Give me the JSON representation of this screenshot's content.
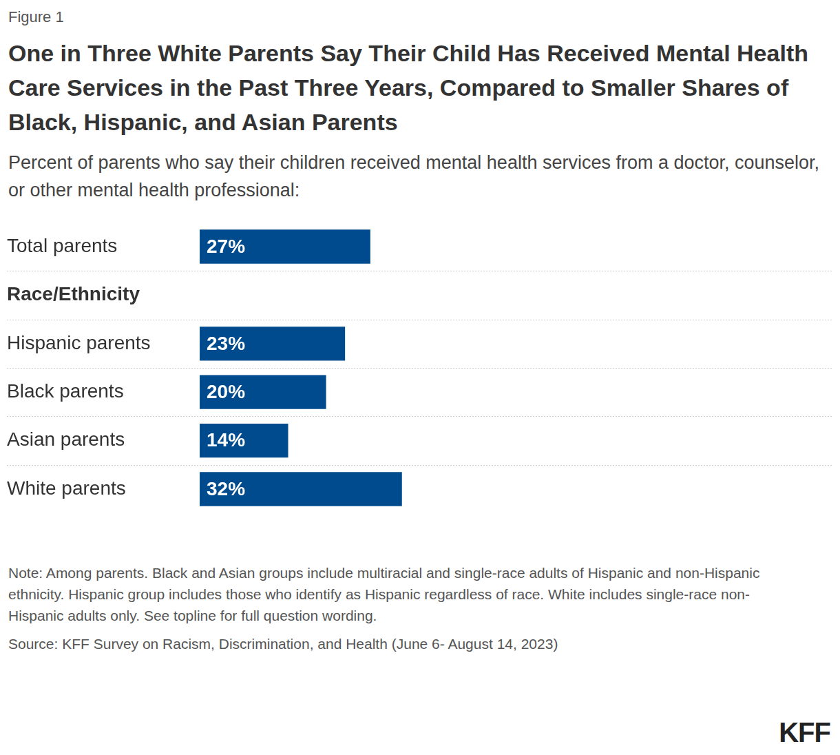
{
  "figure_label": "Figure 1",
  "chart_data": {
    "type": "bar",
    "orientation": "horizontal",
    "title": "One in Three White Parents Say Their Child Has Received Mental Health Care Services in the Past Three Years, Compared to Smaller Shares of Black, Hispanic, and Asian Parents",
    "subtitle": "Percent of parents who say their children received mental health services from a doctor, counselor, or other mental health professional:",
    "categories": [
      "Total parents",
      "Race/Ethnicity",
      "Hispanic parents",
      "Black parents",
      "Asian parents",
      "White parents"
    ],
    "values": [
      27,
      null,
      23,
      20,
      14,
      32
    ],
    "value_labels": [
      "27%",
      null,
      "23%",
      "20%",
      "14%",
      "32%"
    ],
    "color": "#004b8d",
    "xlim": [
      0,
      100
    ],
    "grid": false,
    "tick_labels": "y",
    "data_labels": true
  },
  "note": "Note: Among parents. Black and Asian groups include multiracial and single-race adults of Hispanic and non-Hispanic ethnicity. Hispanic group includes those who identify as Hispanic regardless of race. White includes single-race non-Hispanic adults only. See topline for full question wording.",
  "source": "Source: KFF Survey on Racism, Discrimination, and Health (June 6- August 14, 2023)",
  "logo": "KFF"
}
